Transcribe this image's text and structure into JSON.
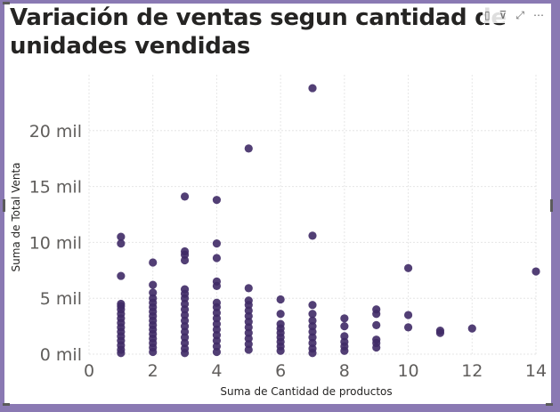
{
  "visual": {
    "title": "Variación de ventas segun cantidad de unidades vendidas",
    "header_icons": [
      {
        "name": "focus-mode-icon",
        "glyph": "▯"
      },
      {
        "name": "filter-icon",
        "glyph": "⊽"
      },
      {
        "name": "expand-icon",
        "glyph": "⤢"
      },
      {
        "name": "more-options-icon",
        "glyph": "⋯"
      }
    ],
    "colors": {
      "frame": "#8a79b3",
      "marker": "#3f2a66",
      "grid": "#e6e6e6",
      "tick_text": "#605e5c"
    }
  },
  "chart_data": {
    "type": "scatter",
    "title": "Variación de ventas segun cantidad de unidades vendidas",
    "xlabel": "Suma de Cantidad de productos",
    "ylabel": "Suma de Total Venta",
    "xlim": [
      0,
      14
    ],
    "ylim": [
      0,
      25000
    ],
    "xticks": [
      0,
      2,
      4,
      6,
      8,
      10,
      12,
      14
    ],
    "xtick_labels": [
      "0",
      "2",
      "4",
      "6",
      "8",
      "10",
      "12",
      "14"
    ],
    "yticks": [
      0,
      5000,
      10000,
      15000,
      20000
    ],
    "ytick_labels": [
      "0 mil",
      "5 mil",
      "10 mil",
      "15 mil",
      "20 mil"
    ],
    "grid": true,
    "points": [
      {
        "x": 1,
        "y": 10500
      },
      {
        "x": 1,
        "y": 9900
      },
      {
        "x": 1,
        "y": 7000
      },
      {
        "x": 1,
        "y": 4500
      },
      {
        "x": 1,
        "y": 4300
      },
      {
        "x": 1,
        "y": 4000
      },
      {
        "x": 1,
        "y": 3600
      },
      {
        "x": 1,
        "y": 3200
      },
      {
        "x": 1,
        "y": 2800
      },
      {
        "x": 1,
        "y": 2400
      },
      {
        "x": 1,
        "y": 2000
      },
      {
        "x": 1,
        "y": 1600
      },
      {
        "x": 1,
        "y": 1200
      },
      {
        "x": 1,
        "y": 800
      },
      {
        "x": 1,
        "y": 400
      },
      {
        "x": 1,
        "y": 100
      },
      {
        "x": 2,
        "y": 8200
      },
      {
        "x": 2,
        "y": 6200
      },
      {
        "x": 2,
        "y": 5500
      },
      {
        "x": 2,
        "y": 5000
      },
      {
        "x": 2,
        "y": 4600
      },
      {
        "x": 2,
        "y": 4200
      },
      {
        "x": 2,
        "y": 3800
      },
      {
        "x": 2,
        "y": 3400
      },
      {
        "x": 2,
        "y": 3000
      },
      {
        "x": 2,
        "y": 2600
      },
      {
        "x": 2,
        "y": 2200
      },
      {
        "x": 2,
        "y": 1800
      },
      {
        "x": 2,
        "y": 1400
      },
      {
        "x": 2,
        "y": 1000
      },
      {
        "x": 2,
        "y": 600
      },
      {
        "x": 2,
        "y": 200
      },
      {
        "x": 3,
        "y": 14100
      },
      {
        "x": 3,
        "y": 9200
      },
      {
        "x": 3,
        "y": 8900
      },
      {
        "x": 3,
        "y": 8400
      },
      {
        "x": 3,
        "y": 5800
      },
      {
        "x": 3,
        "y": 5400
      },
      {
        "x": 3,
        "y": 5000
      },
      {
        "x": 3,
        "y": 4500
      },
      {
        "x": 3,
        "y": 4000
      },
      {
        "x": 3,
        "y": 3500
      },
      {
        "x": 3,
        "y": 3000
      },
      {
        "x": 3,
        "y": 2500
      },
      {
        "x": 3,
        "y": 2000
      },
      {
        "x": 3,
        "y": 1500
      },
      {
        "x": 3,
        "y": 1000
      },
      {
        "x": 3,
        "y": 500
      },
      {
        "x": 3,
        "y": 100
      },
      {
        "x": 4,
        "y": 13800
      },
      {
        "x": 4,
        "y": 9900
      },
      {
        "x": 4,
        "y": 8600
      },
      {
        "x": 4,
        "y": 6500
      },
      {
        "x": 4,
        "y": 6100
      },
      {
        "x": 4,
        "y": 4600
      },
      {
        "x": 4,
        "y": 4200
      },
      {
        "x": 4,
        "y": 3700
      },
      {
        "x": 4,
        "y": 3200
      },
      {
        "x": 4,
        "y": 2700
      },
      {
        "x": 4,
        "y": 2200
      },
      {
        "x": 4,
        "y": 1700
      },
      {
        "x": 4,
        "y": 1200
      },
      {
        "x": 4,
        "y": 700
      },
      {
        "x": 4,
        "y": 200
      },
      {
        "x": 5,
        "y": 18400
      },
      {
        "x": 5,
        "y": 5900
      },
      {
        "x": 5,
        "y": 4800
      },
      {
        "x": 5,
        "y": 4400
      },
      {
        "x": 5,
        "y": 3900
      },
      {
        "x": 5,
        "y": 3400
      },
      {
        "x": 5,
        "y": 2900
      },
      {
        "x": 5,
        "y": 2400
      },
      {
        "x": 5,
        "y": 1900
      },
      {
        "x": 5,
        "y": 1400
      },
      {
        "x": 5,
        "y": 900
      },
      {
        "x": 5,
        "y": 400
      },
      {
        "x": 6,
        "y": 4900
      },
      {
        "x": 6,
        "y": 3600
      },
      {
        "x": 6,
        "y": 2700
      },
      {
        "x": 6,
        "y": 2300
      },
      {
        "x": 6,
        "y": 1900
      },
      {
        "x": 6,
        "y": 1500
      },
      {
        "x": 6,
        "y": 1100
      },
      {
        "x": 6,
        "y": 700
      },
      {
        "x": 6,
        "y": 300
      },
      {
        "x": 7,
        "y": 23800
      },
      {
        "x": 7,
        "y": 10600
      },
      {
        "x": 7,
        "y": 4400
      },
      {
        "x": 7,
        "y": 3600
      },
      {
        "x": 7,
        "y": 3000
      },
      {
        "x": 7,
        "y": 2500
      },
      {
        "x": 7,
        "y": 2000
      },
      {
        "x": 7,
        "y": 1500
      },
      {
        "x": 7,
        "y": 1000
      },
      {
        "x": 7,
        "y": 500
      },
      {
        "x": 7,
        "y": 100
      },
      {
        "x": 8,
        "y": 3200
      },
      {
        "x": 8,
        "y": 2500
      },
      {
        "x": 8,
        "y": 1600
      },
      {
        "x": 8,
        "y": 1100
      },
      {
        "x": 8,
        "y": 700
      },
      {
        "x": 8,
        "y": 300
      },
      {
        "x": 9,
        "y": 4000
      },
      {
        "x": 9,
        "y": 3600
      },
      {
        "x": 9,
        "y": 2600
      },
      {
        "x": 9,
        "y": 1300
      },
      {
        "x": 9,
        "y": 1000
      },
      {
        "x": 9,
        "y": 600
      },
      {
        "x": 10,
        "y": 7700
      },
      {
        "x": 10,
        "y": 3500
      },
      {
        "x": 10,
        "y": 2400
      },
      {
        "x": 11,
        "y": 2100
      },
      {
        "x": 11,
        "y": 1900
      },
      {
        "x": 12,
        "y": 2300
      },
      {
        "x": 14,
        "y": 7400
      }
    ]
  }
}
